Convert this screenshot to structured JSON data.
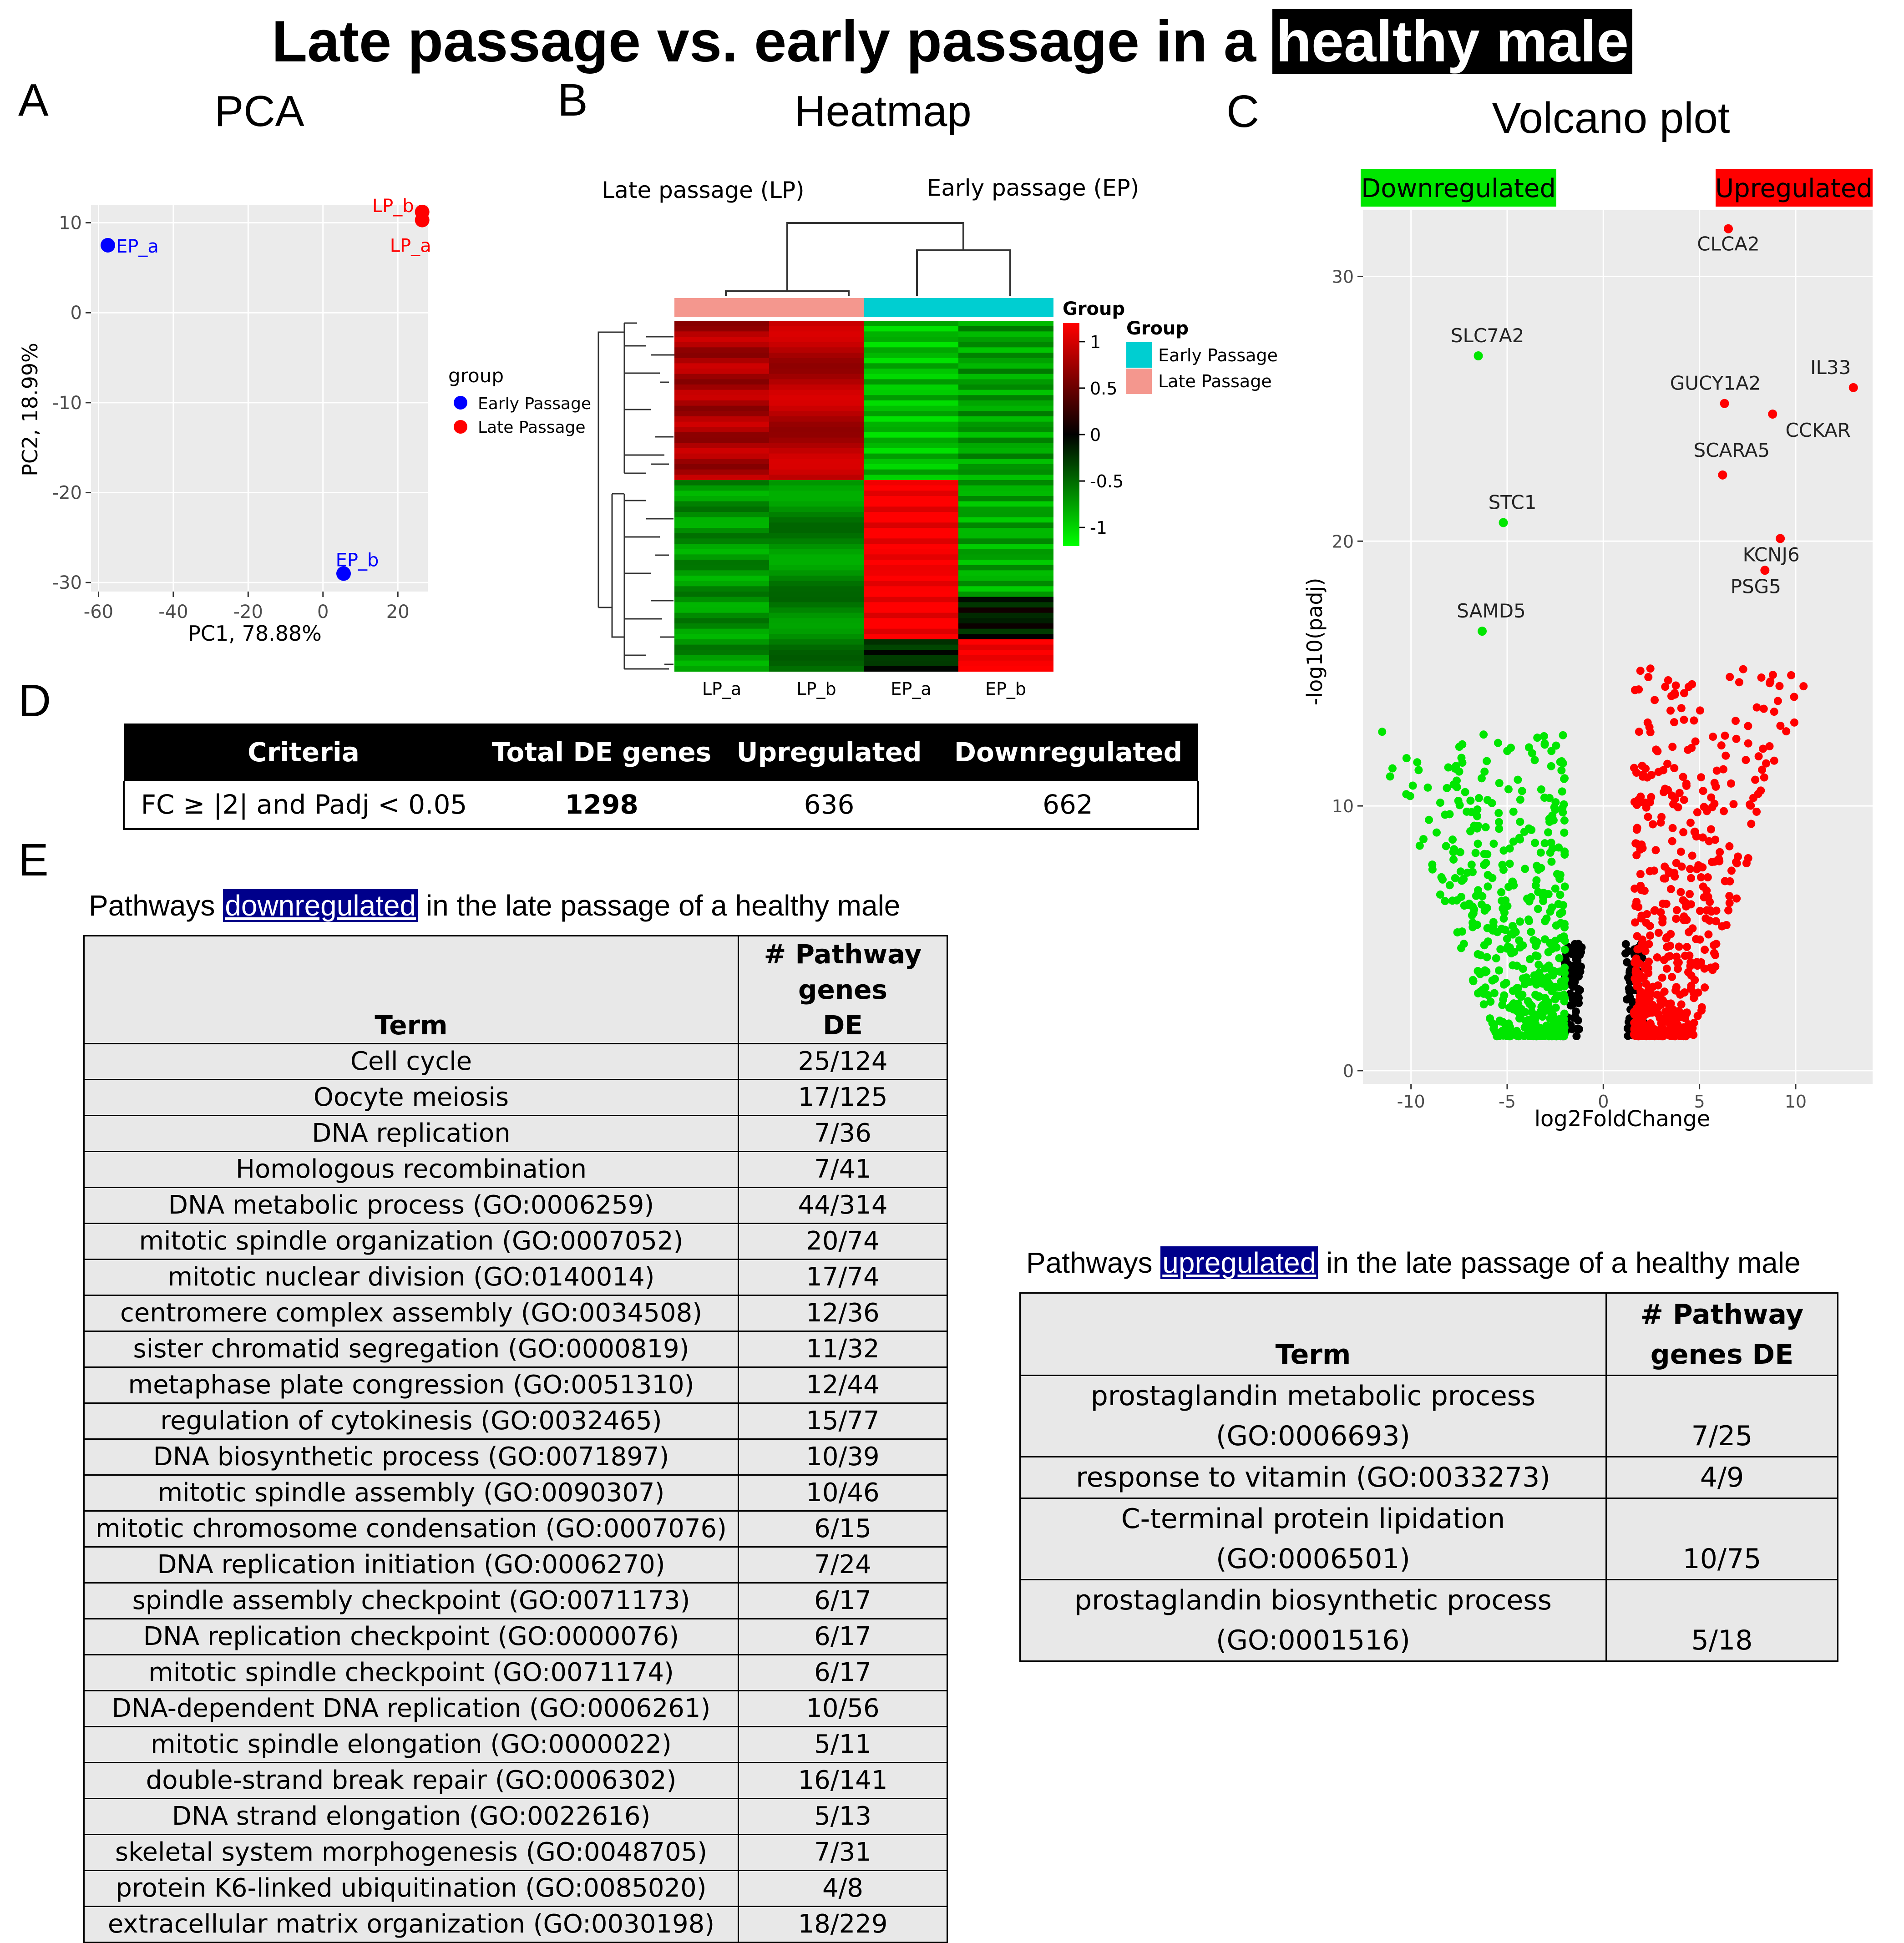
{
  "title": {
    "prefix": "Late passage vs. early passage in a ",
    "highlight": "healthy male"
  },
  "panels": {
    "a": {
      "letter": "A",
      "title": "PCA"
    },
    "b": {
      "letter": "B",
      "title": "Heatmap"
    },
    "c": {
      "letter": "C",
      "title": "Volcano plot"
    },
    "d": {
      "letter": "D"
    },
    "e": {
      "letter": "E"
    }
  },
  "colors": {
    "early": "#0000ff",
    "late": "#ff0000",
    "down": "#00e600",
    "up": "#ff0000",
    "ns": "#000000",
    "plot_bg": "#ebebeb",
    "grid": "#ffffff",
    "early_bar": "#00ced1",
    "late_bar": "#f4978e",
    "pw_highlight": "#00008b"
  },
  "chart_data": [
    {
      "type": "scatter",
      "title": "PCA",
      "xlabel": "PC1, 78.88%",
      "ylabel": "PC2, 18.99%",
      "xlim": [
        -62,
        28
      ],
      "ylim": [
        -31,
        12
      ],
      "xticks": [
        -60,
        -40,
        -20,
        0,
        20
      ],
      "yticks": [
        10,
        0,
        -10,
        -20,
        -30
      ],
      "legend": {
        "title": "group",
        "entries": [
          "Early Passage",
          "Late Passage"
        ]
      },
      "points": [
        {
          "label": "EP_a",
          "group": "Early Passage",
          "x": -57.5,
          "y": 7.5
        },
        {
          "label": "EP_b",
          "group": "Early Passage",
          "x": 5.5,
          "y": -29
        },
        {
          "label": "LP_a",
          "group": "Late Passage",
          "x": 26.5,
          "y": 10.3
        },
        {
          "label": "LP_b",
          "group": "Late Passage",
          "x": 26.5,
          "y": 11.2
        }
      ]
    },
    {
      "type": "heatmap",
      "title": "Heatmap",
      "group_labels": {
        "late": "Late passage (LP)",
        "early": "Early passage (EP)"
      },
      "columns": [
        "LP_a",
        "LP_b",
        "EP_a",
        "EP_b"
      ],
      "column_groups": [
        "Late Passage",
        "Late Passage",
        "Early Passage",
        "Early Passage"
      ],
      "annotation_title": "Group",
      "legend": {
        "title": "Group",
        "entries": [
          "Early Passage",
          "Late Passage"
        ]
      },
      "scale": {
        "min": -1.2,
        "max": 1.2,
        "ticks": [
          1,
          0.5,
          0,
          -0.5,
          -1
        ],
        "tick_labels": [
          "1",
          "0.5",
          "0",
          "-0.5",
          "-1"
        ]
      },
      "row_blocks": [
        {
          "rows": 30,
          "values": [
            0.8,
            0.85,
            -0.9,
            -0.75
          ]
        },
        {
          "rows": 22,
          "values": [
            -0.7,
            -0.65,
            1.2,
            -0.8
          ]
        },
        {
          "rows": 8,
          "values": [
            -0.7,
            -0.6,
            1.2,
            -0.1
          ]
        },
        {
          "rows": 6,
          "values": [
            -0.7,
            -0.6,
            -0.2,
            1.2
          ]
        }
      ]
    },
    {
      "type": "scatter",
      "title": "Volcano plot",
      "xlabel": "log2FoldChange",
      "ylabel": "-log10(padj)",
      "xlim": [
        -12.5,
        14
      ],
      "ylim": [
        -0.5,
        32.5
      ],
      "xticks": [
        -10,
        -5,
        0,
        5,
        10
      ],
      "yticks": [
        0,
        10,
        20,
        30
      ],
      "categories": [
        "Downregulated",
        "Upregulated"
      ],
      "labeled_genes": [
        {
          "gene": "CLCA2",
          "x": 6.5,
          "y": 31.8,
          "dir": "up"
        },
        {
          "gene": "SLC7A2",
          "x": -6.5,
          "y": 27,
          "dir": "down"
        },
        {
          "gene": "IL33",
          "x": 13,
          "y": 25.8,
          "dir": "up"
        },
        {
          "gene": "GUCY1A2",
          "x": 6.3,
          "y": 25.2,
          "dir": "up"
        },
        {
          "gene": "CCKAR",
          "x": 8.8,
          "y": 24.8,
          "dir": "up"
        },
        {
          "gene": "SCARA5",
          "x": 6.2,
          "y": 22.5,
          "dir": "up"
        },
        {
          "gene": "STC1",
          "x": -5.2,
          "y": 20.7,
          "dir": "down"
        },
        {
          "gene": "KCNJ6",
          "x": 9.2,
          "y": 20.1,
          "dir": "up"
        },
        {
          "gene": "PSG5",
          "x": 8.4,
          "y": 18.9,
          "dir": "up"
        },
        {
          "gene": "SAMD5",
          "x": -6.3,
          "y": 16.6,
          "dir": "down"
        }
      ]
    }
  ],
  "de_table": {
    "headers": [
      "Criteria",
      "Total DE genes",
      "Upregulated",
      "Downregulated"
    ],
    "row": [
      "FC ≥ |2| and Padj < 0.05",
      "1298",
      "636",
      "662"
    ]
  },
  "down_pathways": {
    "heading_prefix": "Pathways ",
    "heading_highlight": "downregulated",
    "heading_suffix": " in the late passage of a healthy male",
    "header_term": "Term",
    "header_count_1": "# Pathway genes",
    "header_count_2": "DE",
    "rows": [
      {
        "term": "Cell cycle",
        "count": "25/124"
      },
      {
        "term": "Oocyte meiosis",
        "count": "17/125"
      },
      {
        "term": "DNA replication",
        "count": "7/36"
      },
      {
        "term": "Homologous recombination",
        "count": "7/41"
      },
      {
        "term": "DNA metabolic process (GO:0006259)",
        "count": "44/314"
      },
      {
        "term": "mitotic spindle organization (GO:0007052)",
        "count": "20/74"
      },
      {
        "term": "mitotic nuclear division (GO:0140014)",
        "count": "17/74"
      },
      {
        "term": "centromere complex assembly (GO:0034508)",
        "count": "12/36"
      },
      {
        "term": "sister chromatid segregation (GO:0000819)",
        "count": "11/32"
      },
      {
        "term": "metaphase plate congression (GO:0051310)",
        "count": "12/44"
      },
      {
        "term": "regulation of cytokinesis (GO:0032465)",
        "count": "15/77"
      },
      {
        "term": "DNA biosynthetic process (GO:0071897)",
        "count": "10/39"
      },
      {
        "term": "mitotic spindle assembly (GO:0090307)",
        "count": "10/46"
      },
      {
        "term": "mitotic chromosome condensation (GO:0007076)",
        "count": "6/15"
      },
      {
        "term": "DNA replication initiation (GO:0006270)",
        "count": "7/24"
      },
      {
        "term": "spindle assembly checkpoint (GO:0071173)",
        "count": "6/17"
      },
      {
        "term": "DNA replication checkpoint (GO:0000076)",
        "count": "6/17"
      },
      {
        "term": "mitotic spindle checkpoint (GO:0071174)",
        "count": "6/17"
      },
      {
        "term": "DNA-dependent DNA replication (GO:0006261)",
        "count": "10/56"
      },
      {
        "term": "mitotic spindle elongation (GO:0000022)",
        "count": "5/11"
      },
      {
        "term": "double-strand break repair (GO:0006302)",
        "count": "16/141"
      },
      {
        "term": "DNA strand elongation (GO:0022616)",
        "count": "5/13"
      },
      {
        "term": "skeletal system morphogenesis (GO:0048705)",
        "count": "7/31"
      },
      {
        "term": "protein K6-linked ubiquitination (GO:0085020)",
        "count": "4/8"
      },
      {
        "term": "extracellular matrix organization (GO:0030198)",
        "count": "18/229"
      }
    ]
  },
  "up_pathways": {
    "heading_prefix": "Pathways ",
    "heading_highlight": "upregulated",
    "heading_suffix": " in the late passage of a healthy male",
    "header_term": "Term",
    "header_count_1": "# Pathway",
    "header_count_2": "genes DE",
    "rows": [
      {
        "term1": "prostaglandin metabolic process",
        "term2": "(GO:0006693)",
        "count": "7/25"
      },
      {
        "term1": "response to vitamin (GO:0033273)",
        "term2": "",
        "count": "4/9"
      },
      {
        "term1": "C-terminal protein lipidation",
        "term2": "(GO:0006501)",
        "count": "10/75"
      },
      {
        "term1": "prostaglandin biosynthetic process",
        "term2": "(GO:0001516)",
        "count": "5/18"
      }
    ]
  }
}
